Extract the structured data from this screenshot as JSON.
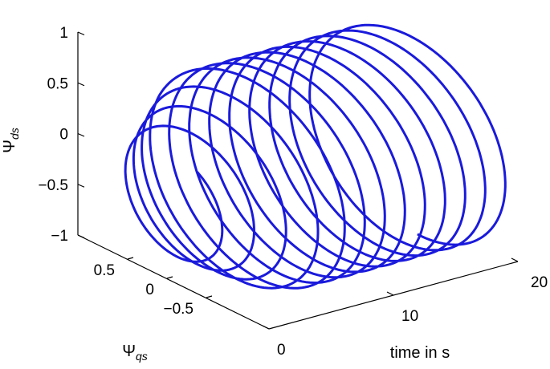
{
  "chart_data": {
    "type": "line",
    "projection": "3d",
    "series": [
      {
        "color": "#1a1adc",
        "description_points": [
          {
            "t": 0.0,
            "psi_qs": 0.7,
            "psi_ds": -0.9
          },
          {
            "t": 20.0,
            "psi_qs": -0.5,
            "psi_ds": -0.55
          }
        ]
      }
    ],
    "axes": {
      "z": {
        "label_main": "Ψ",
        "label_sub": "ds",
        "range": [
          -1,
          1
        ],
        "ticks": [
          "1",
          "0.5",
          "0",
          "−0.5",
          "−1"
        ]
      },
      "y": {
        "label_main": "Ψ",
        "label_sub": "qs",
        "range": [
          -0.8,
          0.8
        ],
        "ticks": [
          "0.5",
          "0",
          "−0.5"
        ]
      },
      "x": {
        "label": "time in s",
        "range": [
          0,
          20
        ],
        "ticks": [
          "0",
          "10",
          "20"
        ]
      }
    },
    "grid": false,
    "legend": "none"
  }
}
